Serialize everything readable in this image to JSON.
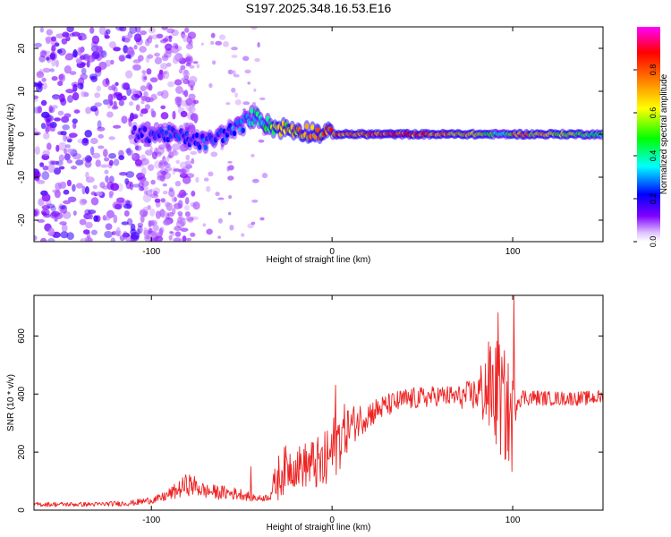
{
  "title": "S197.2025.348.16.53.E16",
  "chart_data": [
    {
      "type": "heatmap",
      "name": "spectrogram",
      "xlabel": "Height of straight line (km)",
      "ylabel": "Frequency (Hz)",
      "xlim": [
        -165,
        150
      ],
      "ylim": [
        -25,
        25
      ],
      "xticks": [
        -100,
        0,
        100
      ],
      "xtick_labels": [
        "-100",
        "0",
        "100"
      ],
      "yticks": [
        -20,
        -10,
        0,
        10,
        20
      ],
      "ytick_labels": [
        "-20",
        "-10",
        "0",
        "10",
        "20"
      ],
      "colorbar": {
        "label": "Normalized spectral amplitude",
        "range": [
          0,
          1
        ],
        "ticks": [
          0.0,
          0.2,
          0.4,
          0.6,
          0.8
        ],
        "tick_labels": [
          "0.0",
          "0.2",
          "0.4",
          "0.6",
          "0.8"
        ],
        "colormap": [
          "#ffffff",
          "#8000ff",
          "#0000ff",
          "#00ffff",
          "#00ff00",
          "#ffff00",
          "#ff8000",
          "#ff0000",
          "#ff00ff"
        ]
      },
      "ridge": {
        "x": [
          -165,
          -140,
          -120,
          -100,
          -90,
          -80,
          -70,
          -60,
          -50,
          -45,
          -40,
          -35,
          -30,
          -20,
          -10,
          0,
          10,
          20,
          40,
          60,
          80,
          90,
          95,
          100,
          120,
          150
        ],
        "frequency": [
          0,
          0,
          0,
          0,
          0,
          -1,
          -2,
          0,
          2,
          4,
          4,
          2,
          1.5,
          1,
          0.5,
          0,
          0,
          0,
          0,
          0,
          0,
          0,
          0,
          0,
          0,
          0
        ],
        "amplitude": [
          0.15,
          0.15,
          0.15,
          0.25,
          0.3,
          0.25,
          0.3,
          0.3,
          0.35,
          0.4,
          0.45,
          0.5,
          0.65,
          0.7,
          0.75,
          0.8,
          0.85,
          0.85,
          0.85,
          0.8,
          0.7,
          0.5,
          0.4,
          0.75,
          0.7,
          0.45
        ]
      },
      "noise_region": {
        "x": [
          -165,
          -105
        ],
        "frequency": [
          -25,
          25
        ],
        "amplitude": [
          0.05,
          0.2
        ]
      }
    },
    {
      "type": "line",
      "name": "snr",
      "xlabel": "Height of straight line (km)",
      "ylabel": "SNR (10 * v/v)",
      "xlim": [
        -165,
        150
      ],
      "ylim": [
        0,
        740
      ],
      "xticks": [
        -100,
        0,
        100
      ],
      "xtick_labels": [
        "-100",
        "0",
        "100"
      ],
      "yticks": [
        0,
        200,
        400,
        600
      ],
      "ytick_labels": [
        "0",
        "200",
        "400",
        "600"
      ],
      "color": "#ee2222",
      "series": [
        {
          "name": "SNR",
          "x": [
            -165,
            -150,
            -130,
            -110,
            -95,
            -85,
            -80,
            -75,
            -70,
            -60,
            -50,
            -45,
            -40,
            -35,
            -30,
            -25,
            -20,
            -10,
            -5,
            0,
            5,
            10,
            20,
            30,
            40,
            60,
            70,
            80,
            85,
            90,
            95,
            100,
            102,
            105,
            120,
            140,
            150
          ],
          "y": [
            20,
            20,
            20,
            25,
            40,
            70,
            90,
            80,
            65,
            60,
            55,
            45,
            40,
            45,
            110,
            150,
            150,
            160,
            150,
            200,
            260,
            290,
            330,
            360,
            380,
            395,
            390,
            400,
            420,
            410,
            360,
            300,
            380,
            390,
            385,
            385,
            390
          ],
          "spread": [
            8,
            8,
            8,
            10,
            15,
            30,
            40,
            35,
            25,
            25,
            20,
            15,
            12,
            12,
            80,
            80,
            70,
            90,
            110,
            120,
            110,
            70,
            50,
            40,
            40,
            35,
            40,
            60,
            150,
            200,
            200,
            180,
            40,
            30,
            25,
            25,
            25
          ]
        }
      ],
      "peaks": [
        {
          "x": 100.5,
          "y": 740
        },
        {
          "x": -45,
          "y": 150
        },
        {
          "x": 2,
          "y": 430
        },
        {
          "x": 92,
          "y": 680
        }
      ]
    }
  ]
}
